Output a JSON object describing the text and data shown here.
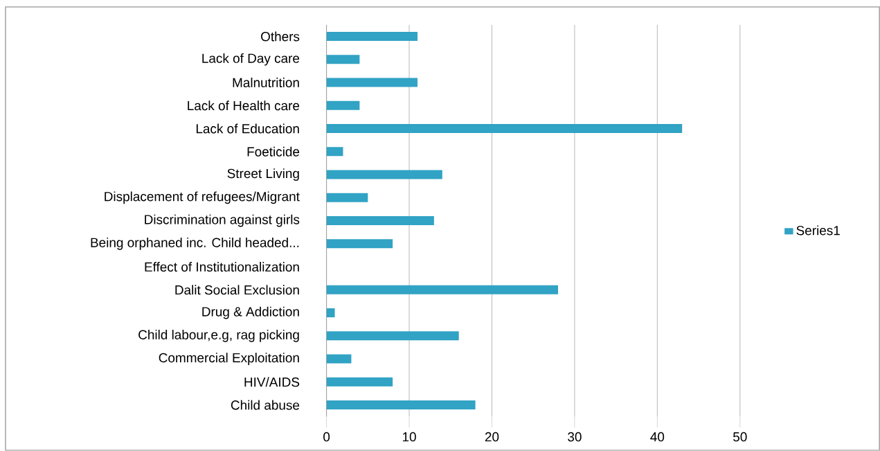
{
  "chart_data": {
    "type": "bar",
    "orientation": "horizontal",
    "categories": [
      "Others",
      "Lack of Day care",
      "Malnutrition",
      "Lack of Health care",
      "Lack of Education",
      "Foeticide",
      "Street Living",
      "Displacement of refugees/Migrant",
      "Discrimination against girls",
      "Being orphaned  inc. Child headed...",
      "Effect of Institutionalization",
      "Dalit Social Exclusion",
      "Drug & Addiction",
      "Child labour,e.g, rag picking",
      "Commercial Exploitation",
      "HIV/AIDS",
      "Child abuse"
    ],
    "series": [
      {
        "name": "Series1",
        "color": "#31a3c4",
        "values": [
          11,
          4,
          11,
          4,
          43,
          2,
          14,
          5,
          13,
          8,
          0,
          28,
          1,
          16,
          3,
          8,
          18
        ]
      }
    ],
    "xlim": [
      0,
      50
    ],
    "xticks": [
      0,
      10,
      20,
      30,
      40,
      50
    ],
    "grid": "x",
    "legend": "right"
  }
}
